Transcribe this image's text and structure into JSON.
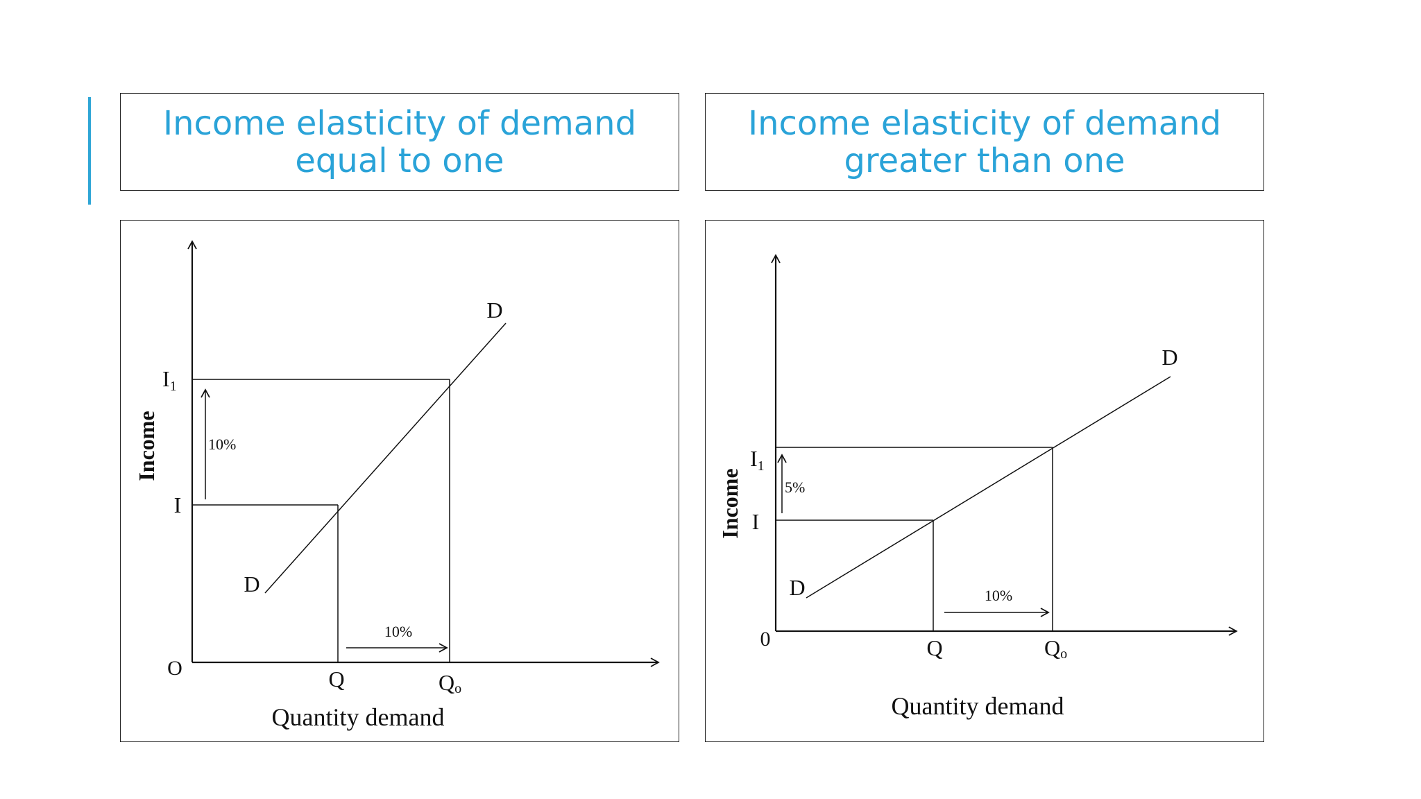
{
  "panels": [
    {
      "title_line1": "Income elasticity of demand",
      "title_line2": "equal to one",
      "y_label": "Income",
      "x_label": "Quantity demand",
      "origin": "O",
      "income_low": "I",
      "income_high": "I",
      "income_high_sub": "1",
      "qty_low": "Q",
      "qty_high": "Q",
      "qty_high_sub": "o",
      "curve_top": "D",
      "curve_bottom": "D",
      "income_change": "10%",
      "qty_change": "10%"
    },
    {
      "title_line1": "Income elasticity of demand",
      "title_line2": "greater than one",
      "y_label": "Income",
      "x_label": "Quantity demand",
      "origin": "0",
      "income_low": "I",
      "income_high": "I",
      "income_high_sub": "1",
      "qty_low": "Q",
      "qty_high": "Q",
      "qty_high_sub": "o",
      "curve_top": "D",
      "curve_bottom": "D",
      "income_change": "5%",
      "qty_change": "10%"
    }
  ]
}
